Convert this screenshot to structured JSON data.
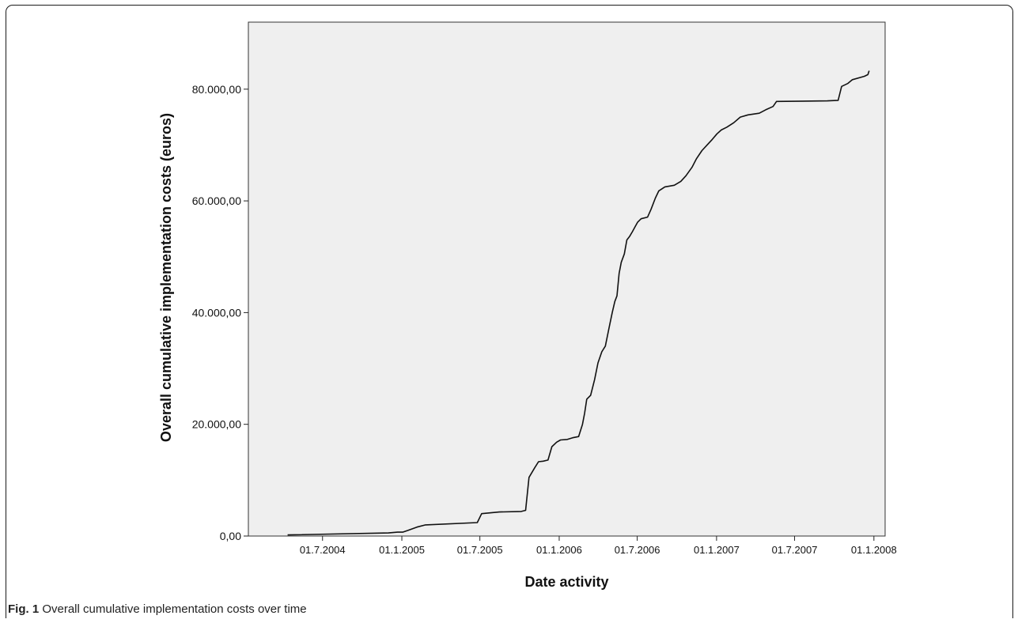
{
  "caption": {
    "label": "Fig. 1",
    "text": " Overall cumulative implementation costs over time"
  },
  "chart_data": {
    "type": "line",
    "xlabel": "Date activity",
    "ylabel": "Overall cumulative implementation costs (euros)",
    "ylim": [
      0,
      92000
    ],
    "xlim": [
      "2004-01-11",
      "2008-01-27"
    ],
    "grid": false,
    "background_color": "#efefef",
    "line_color": "#111111",
    "x_ticks": [
      {
        "label": "01.7.2004",
        "date": "2004-07-01"
      },
      {
        "label": "01.1.2005",
        "date": "2005-01-01"
      },
      {
        "label": "01.7.2005",
        "date": "2005-07-01"
      },
      {
        "label": "01.1.2006",
        "date": "2006-01-01"
      },
      {
        "label": "01.7.2006",
        "date": "2006-07-01"
      },
      {
        "label": "01.1.2007",
        "date": "2007-01-01"
      },
      {
        "label": "01.7.2007",
        "date": "2007-07-01"
      },
      {
        "label": "01.1.2008",
        "date": "2008-01-01"
      }
    ],
    "y_ticks": [
      {
        "label": "0,00",
        "value": 0
      },
      {
        "label": "20.000,00",
        "value": 20000
      },
      {
        "label": "40.000,00",
        "value": 40000
      },
      {
        "label": "60.000,00",
        "value": 60000
      },
      {
        "label": "80.000,00",
        "value": 80000
      }
    ],
    "series": [
      {
        "points": [
          [
            "2004-04-11",
            200
          ],
          [
            "2004-12-01",
            550
          ],
          [
            "2004-12-22",
            700
          ],
          [
            "2005-01-03",
            700
          ],
          [
            "2005-01-15",
            1000
          ],
          [
            "2005-02-05",
            1600
          ],
          [
            "2005-02-25",
            2000
          ],
          [
            "2005-06-25",
            2400
          ],
          [
            "2005-07-05",
            4000
          ],
          [
            "2005-08-15",
            4300
          ],
          [
            "2005-10-05",
            4400
          ],
          [
            "2005-10-15",
            4600
          ],
          [
            "2005-10-23",
            10500
          ],
          [
            "2005-11-05",
            12200
          ],
          [
            "2005-11-14",
            13300
          ],
          [
            "2005-11-25",
            13400
          ],
          [
            "2005-12-06",
            13600
          ],
          [
            "2005-12-15",
            16000
          ],
          [
            "2005-12-26",
            16800
          ],
          [
            "2006-01-04",
            17200
          ],
          [
            "2006-01-20",
            17300
          ],
          [
            "2006-02-01",
            17600
          ],
          [
            "2006-02-15",
            17800
          ],
          [
            "2006-02-24",
            20000
          ],
          [
            "2006-03-01",
            22000
          ],
          [
            "2006-03-06",
            24500
          ],
          [
            "2006-03-15",
            25200
          ],
          [
            "2006-03-24",
            28000
          ],
          [
            "2006-04-01",
            31000
          ],
          [
            "2006-04-10",
            33000
          ],
          [
            "2006-04-18",
            34000
          ],
          [
            "2006-04-26",
            37000
          ],
          [
            "2006-05-04",
            40000
          ],
          [
            "2006-05-10",
            42000
          ],
          [
            "2006-05-15",
            43000
          ],
          [
            "2006-05-20",
            47000
          ],
          [
            "2006-05-25",
            49000
          ],
          [
            "2006-06-01",
            50500
          ],
          [
            "2006-06-07",
            53000
          ],
          [
            "2006-06-13",
            53600
          ],
          [
            "2006-06-20",
            54500
          ],
          [
            "2006-06-27",
            55500
          ],
          [
            "2006-07-02",
            56200
          ],
          [
            "2006-07-10",
            56800
          ],
          [
            "2006-07-25",
            57100
          ],
          [
            "2006-08-02",
            58500
          ],
          [
            "2006-08-12",
            60500
          ],
          [
            "2006-08-20",
            61800
          ],
          [
            "2006-09-03",
            62500
          ],
          [
            "2006-09-25",
            62800
          ],
          [
            "2006-10-10",
            63500
          ],
          [
            "2006-10-22",
            64500
          ],
          [
            "2006-11-05",
            66000
          ],
          [
            "2006-11-15",
            67500
          ],
          [
            "2006-11-28",
            69000
          ],
          [
            "2006-12-10",
            70000
          ],
          [
            "2006-12-22",
            71000
          ],
          [
            "2007-01-02",
            72000
          ],
          [
            "2007-01-12",
            72700
          ],
          [
            "2007-01-25",
            73200
          ],
          [
            "2007-02-10",
            74000
          ],
          [
            "2007-02-25",
            75000
          ],
          [
            "2007-03-15",
            75400
          ],
          [
            "2007-04-10",
            75700
          ],
          [
            "2007-04-25",
            76300
          ],
          [
            "2007-05-12",
            76900
          ],
          [
            "2007-05-20",
            77800
          ],
          [
            "2007-09-15",
            77900
          ],
          [
            "2007-10-10",
            78000
          ],
          [
            "2007-10-18",
            80500
          ],
          [
            "2007-11-01",
            81000
          ],
          [
            "2007-11-12",
            81700
          ],
          [
            "2007-12-10",
            82300
          ],
          [
            "2007-12-18",
            82600
          ],
          [
            "2007-12-21",
            83300
          ]
        ]
      }
    ]
  }
}
